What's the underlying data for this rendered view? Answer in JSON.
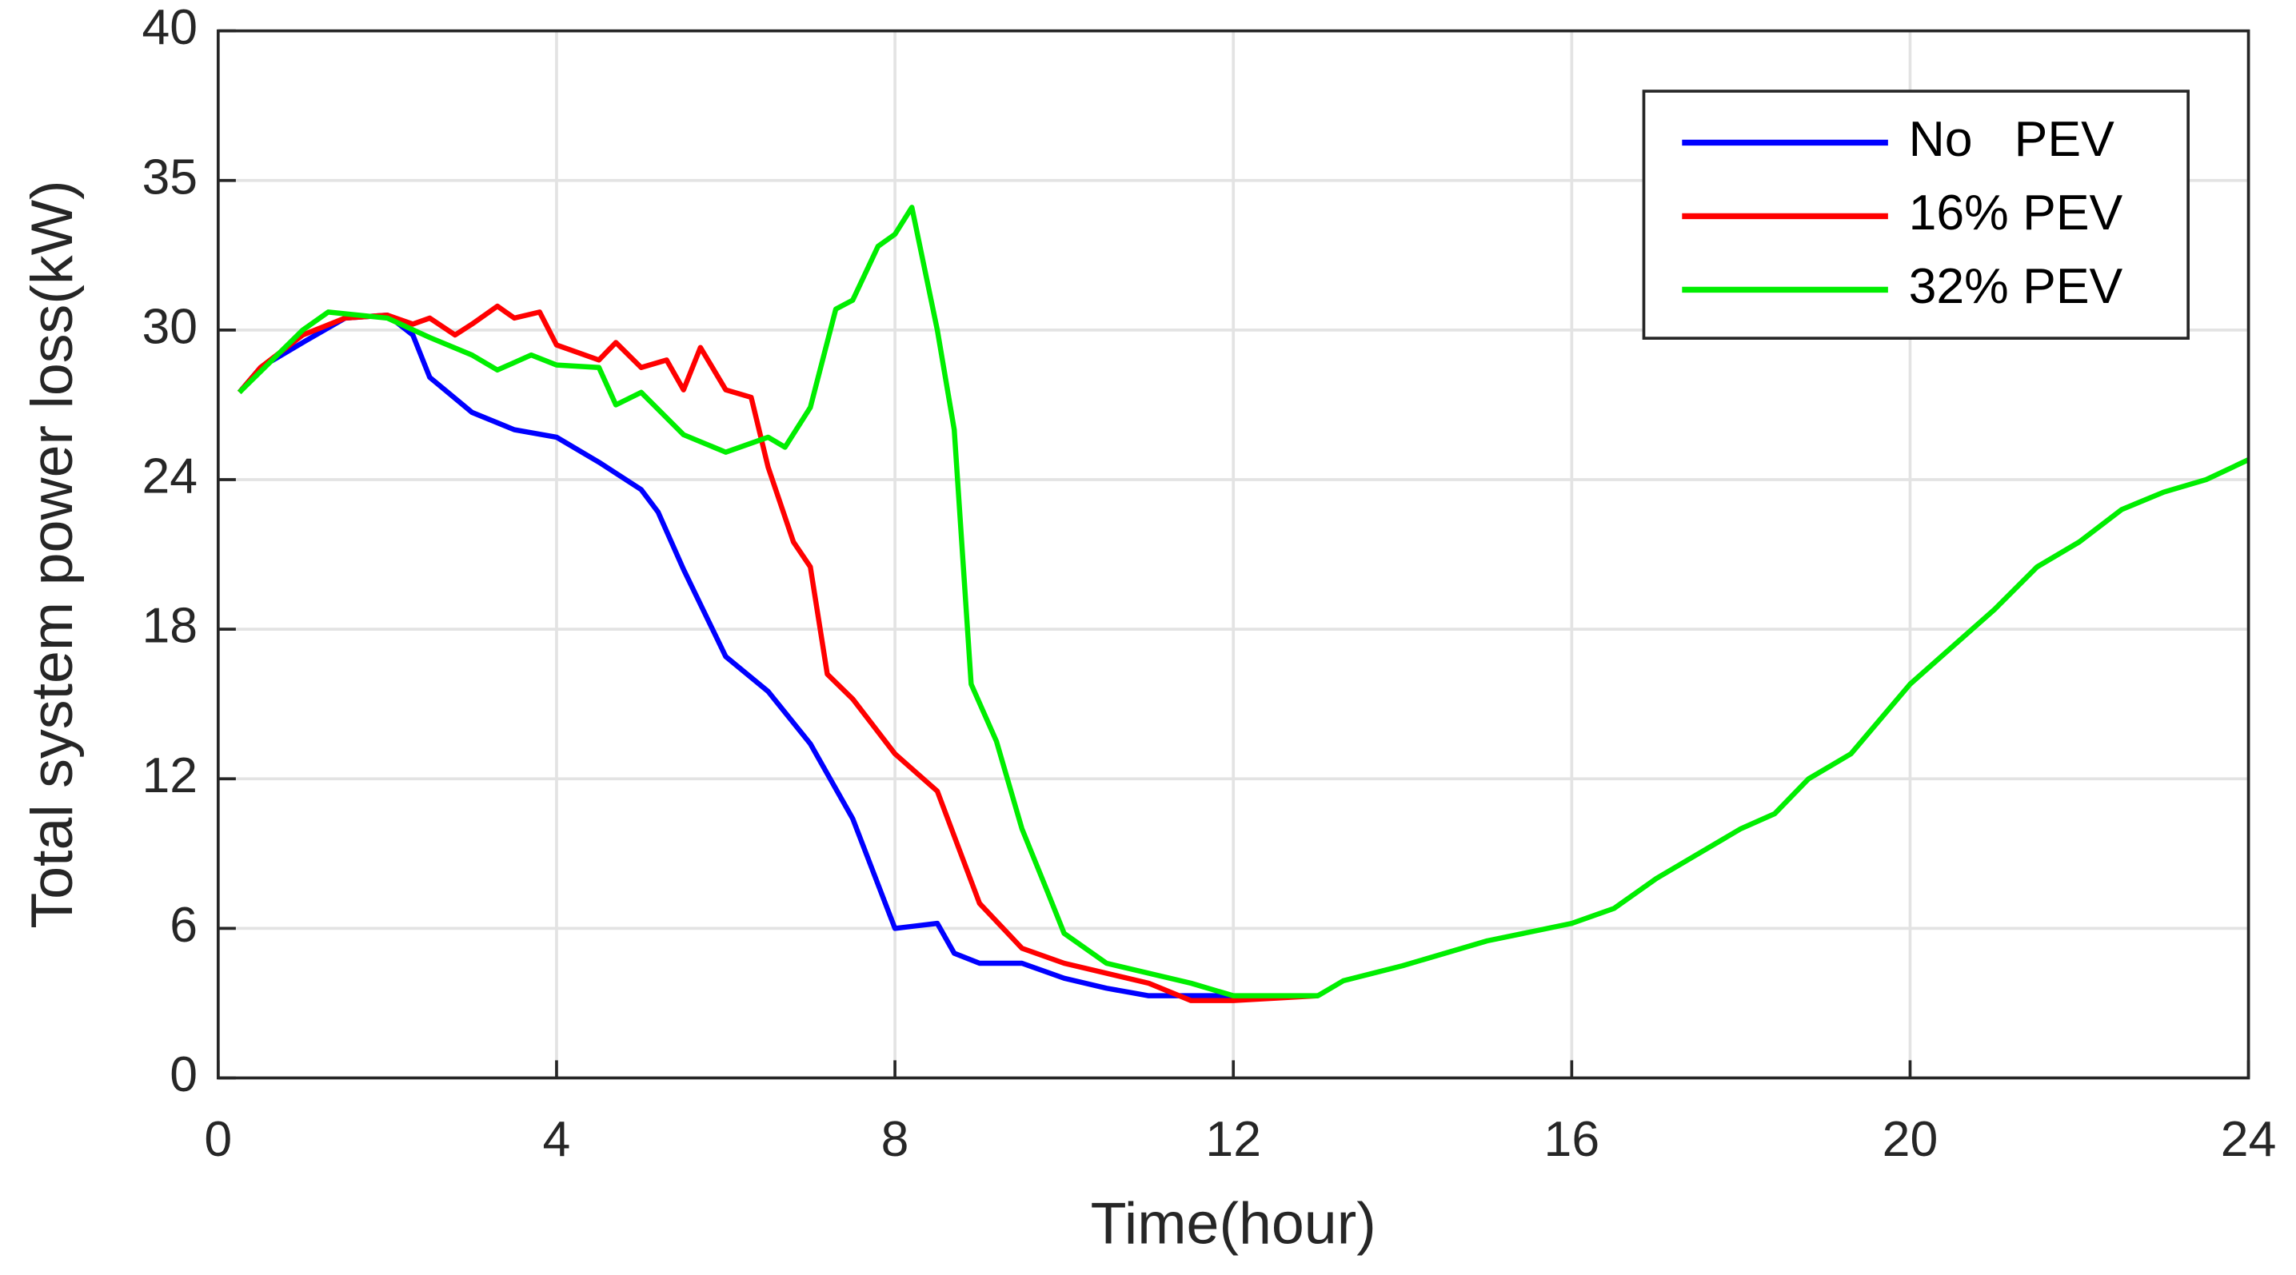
{
  "chart_data": {
    "type": "line",
    "xlabel": "Time(hour)",
    "ylabel": "Total system power loss(kW)",
    "xlim": [
      0,
      24
    ],
    "xticks": [
      0,
      4,
      8,
      12,
      16,
      20,
      24
    ],
    "ylim": [
      0,
      40
    ],
    "yticks": [
      0,
      6,
      12,
      18,
      24,
      30,
      35,
      40
    ],
    "grid": true,
    "legend_position": "upper right",
    "series": [
      {
        "name": "No   PEV",
        "color": "#0000ff",
        "x": [
          0.25,
          0.5,
          1,
          1.5,
          2,
          2.3,
          2.5,
          3,
          3.5,
          4,
          4.5,
          5,
          5.2,
          5.5,
          6,
          6.5,
          7,
          7.5,
          8,
          8.5,
          8.7,
          9,
          9.5,
          10,
          10.5,
          11,
          12
        ],
        "values": [
          27.5,
          28.5,
          29.5,
          30.4,
          30.5,
          29.8,
          28.1,
          26.7,
          26,
          25.7,
          24.7,
          23.6,
          22.7,
          20.4,
          16.9,
          15.5,
          13.4,
          10.4,
          6,
          6.2,
          5,
          4.6,
          4.6,
          4,
          3.6,
          3.3,
          3.3
        ]
      },
      {
        "name": "16% PEV",
        "color": "#ff0000",
        "x": [
          0.25,
          0.5,
          1,
          1.5,
          2,
          2.3,
          2.5,
          2.8,
          3,
          3.3,
          3.5,
          3.8,
          4,
          4.5,
          4.7,
          5,
          5.3,
          5.5,
          5.7,
          6,
          6.3,
          6.5,
          6.8,
          7,
          7.2,
          7.5,
          8,
          8.5,
          9,
          9.5,
          10,
          11,
          11.5,
          12,
          13
        ],
        "values": [
          27.5,
          28.5,
          29.8,
          30.4,
          30.5,
          30.2,
          30.4,
          29.8,
          30.2,
          30.8,
          30.4,
          30.6,
          29.4,
          28.8,
          29.5,
          28.5,
          28.8,
          27.6,
          29.3,
          27.6,
          27.3,
          24.5,
          21.5,
          20.5,
          16.2,
          15.2,
          13,
          11.5,
          7,
          5.2,
          4.6,
          3.8,
          3.1,
          3.1,
          3.3
        ]
      },
      {
        "name": "32% PEV",
        "color": "#00ee00",
        "x": [
          0.25,
          1,
          1.3,
          2,
          2.5,
          3,
          3.3,
          3.7,
          4,
          4.5,
          4.7,
          5,
          5.5,
          6,
          6.5,
          6.7,
          7,
          7.3,
          7.5,
          7.8,
          8,
          8.2,
          8.5,
          8.7,
          8.9,
          9.2,
          9.5,
          9.8,
          10,
          10.5,
          11,
          11.5,
          12,
          12.5,
          13,
          13.3,
          14,
          15,
          16,
          16.5,
          17,
          17.5,
          18,
          18.4,
          18.8,
          19.3,
          20,
          21,
          21.5,
          22,
          22.5,
          23,
          23.5,
          24
        ],
        "values": [
          27.5,
          30,
          30.6,
          30.4,
          29.7,
          29,
          28.4,
          29,
          28.6,
          28.5,
          27,
          27.5,
          25.8,
          25.1,
          25.7,
          25.3,
          26.9,
          30.7,
          31,
          32.8,
          33.2,
          34.1,
          30,
          26,
          15.8,
          13.5,
          10,
          7.5,
          5.8,
          4.6,
          4.2,
          3.8,
          3.3,
          3.3,
          3.3,
          3.9,
          4.5,
          5.5,
          6.2,
          6.8,
          8,
          9,
          10,
          10.6,
          12,
          13,
          15.8,
          18.8,
          20.5,
          21.5,
          22.8,
          23.5,
          24,
          24.8
        ]
      }
    ]
  }
}
